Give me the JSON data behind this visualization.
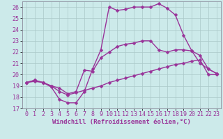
{
  "xlabel": "Windchill (Refroidissement éolien,°C)",
  "background_color": "#cceaea",
  "grid_color": "#aac8c8",
  "line_color": "#993399",
  "xlim": [
    -0.5,
    23.5
  ],
  "ylim": [
    17,
    26.5
  ],
  "xticks": [
    0,
    1,
    2,
    3,
    4,
    5,
    6,
    7,
    8,
    9,
    10,
    11,
    12,
    13,
    14,
    15,
    16,
    17,
    18,
    19,
    20,
    21,
    22,
    23
  ],
  "yticks": [
    17,
    18,
    19,
    20,
    21,
    22,
    23,
    24,
    25,
    26
  ],
  "line1_x": [
    0,
    1,
    2,
    3,
    4,
    5,
    6,
    7,
    8,
    9,
    10,
    11,
    12,
    13,
    14,
    15,
    16,
    17,
    18,
    19,
    20,
    21,
    22,
    23
  ],
  "line1_y": [
    19.3,
    19.5,
    19.3,
    19.0,
    18.8,
    18.3,
    18.5,
    20.4,
    20.3,
    21.5,
    22.0,
    22.5,
    22.7,
    22.8,
    23.0,
    23.0,
    22.2,
    22.0,
    22.2,
    22.2,
    22.1,
    21.7,
    20.5,
    20.1
  ],
  "line2_x": [
    0,
    1,
    2,
    3,
    4,
    5,
    6,
    7,
    8,
    9,
    10,
    11,
    12,
    13,
    14,
    15,
    16,
    17,
    18,
    19,
    20,
    21,
    22,
    23
  ],
  "line2_y": [
    19.3,
    19.5,
    19.3,
    18.9,
    17.8,
    17.5,
    17.5,
    18.5,
    20.5,
    22.2,
    26.0,
    25.7,
    25.8,
    26.0,
    26.0,
    26.0,
    26.3,
    25.9,
    25.3,
    23.5,
    22.1,
    21.0,
    20.5,
    20.1
  ],
  "line3_x": [
    0,
    1,
    2,
    3,
    4,
    5,
    6,
    7,
    8,
    9,
    10,
    11,
    12,
    13,
    14,
    15,
    16,
    17,
    18,
    19,
    20,
    21,
    22,
    23
  ],
  "line3_y": [
    19.3,
    19.4,
    19.3,
    19.0,
    18.5,
    18.2,
    18.4,
    18.6,
    18.8,
    19.0,
    19.3,
    19.5,
    19.7,
    19.9,
    20.1,
    20.3,
    20.5,
    20.7,
    20.9,
    21.0,
    21.2,
    21.3,
    20.0,
    20.0
  ],
  "marker": "D",
  "markersize": 2.5,
  "linewidth": 1.0,
  "xlabel_fontsize": 6.5,
  "tick_fontsize": 6.0
}
